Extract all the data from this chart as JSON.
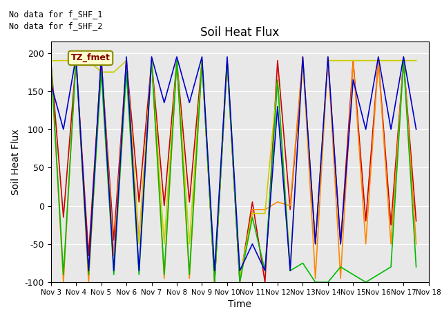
{
  "title": "Soil Heat Flux",
  "ylabel": "Soil Heat Flux",
  "xlabel": "Time",
  "ylim": [
    -100,
    215
  ],
  "annotation_lines": [
    "No data for f_SHF_1",
    "No data for f_SHF_2"
  ],
  "legend_label": "TZ_fmet",
  "colors": {
    "SHF1": "#cc0000",
    "SHF2": "#ff8800",
    "SHF3": "#cccc00",
    "SHF4": "#00bb00",
    "SHF5": "#0000cc"
  },
  "x_ticks_pos": [
    3,
    4,
    5,
    6,
    7,
    8,
    9,
    10,
    11,
    12,
    13,
    14,
    15,
    16,
    17,
    18
  ],
  "x_ticks_labels": [
    "Nov 3",
    "Nov 4",
    "Nov 5",
    "Nov 6",
    "Nov 7",
    "Nov 8",
    "Nov 9",
    "Nov 10",
    "Nov 11",
    "Nov 12",
    "Nov 13",
    "Nov 14",
    "Nov 15",
    "Nov 16",
    "Nov 17",
    "Nov 18"
  ],
  "x_data": [
    3.0,
    3.5,
    4.0,
    4.5,
    5.0,
    5.5,
    6.0,
    6.5,
    7.0,
    7.5,
    8.0,
    8.5,
    9.0,
    9.5,
    10.0,
    10.5,
    11.0,
    11.5,
    12.0,
    12.5,
    13.0,
    13.5,
    14.0,
    14.5,
    15.0,
    15.5,
    16.0,
    16.5,
    17.0,
    17.5
  ],
  "SHF1": [
    190,
    -15,
    190,
    -65,
    190,
    -45,
    190,
    5,
    190,
    0,
    190,
    5,
    190,
    -100,
    190,
    -100,
    5,
    -100,
    190,
    -5,
    190,
    -50,
    190,
    -50,
    190,
    -20,
    190,
    -25,
    190,
    -20
  ],
  "SHF2": [
    190,
    -100,
    195,
    -100,
    195,
    -65,
    190,
    -45,
    190,
    -95,
    190,
    -95,
    190,
    -100,
    190,
    -100,
    -5,
    -5,
    5,
    0,
    195,
    -95,
    195,
    -95,
    190,
    -50,
    190,
    -50,
    195,
    -50
  ],
  "SHF3": [
    190,
    190,
    190,
    190,
    175,
    175,
    190,
    -50,
    190,
    -50,
    190,
    -50,
    190,
    -95,
    190,
    -95,
    -10,
    -10,
    165,
    -80,
    190,
    -50,
    190,
    190,
    190,
    190,
    190,
    190,
    190,
    190
  ],
  "SHF4": [
    190,
    -90,
    190,
    -90,
    175,
    -90,
    175,
    -90,
    190,
    -90,
    190,
    -90,
    190,
    -100,
    190,
    -100,
    -15,
    -85,
    165,
    -85,
    -75,
    -100,
    -100,
    -80,
    -90,
    -100,
    -90,
    -80,
    190,
    -80
  ],
  "SHF5": [
    160,
    100,
    195,
    -85,
    195,
    -85,
    195,
    -85,
    195,
    135,
    195,
    135,
    195,
    -85,
    195,
    -85,
    -50,
    -85,
    130,
    -85,
    195,
    -50,
    195,
    -50,
    165,
    100,
    195,
    100,
    195,
    100
  ],
  "background_color": "#e8e8e8",
  "yticks": [
    -100,
    -50,
    0,
    50,
    100,
    150,
    200
  ]
}
